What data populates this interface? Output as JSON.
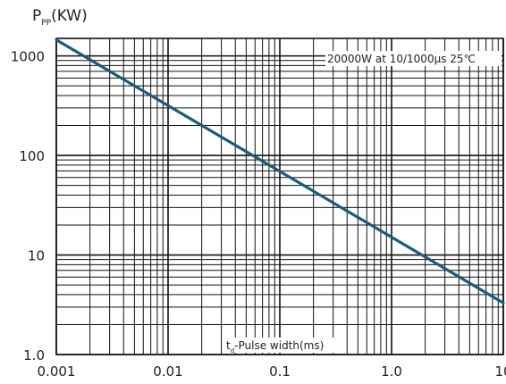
{
  "chart_data": {
    "type": "line",
    "ylabel_main": "P",
    "ylabel_sub": "PP",
    "ylabel_unit": "(KW)",
    "xlabel_main": "t",
    "xlabel_sub": "d",
    "xlabel_rest": "-Pulse width(ms)",
    "annotation": "20000W at 10/1000μs 25℃",
    "x_scale": "log",
    "y_scale": "log",
    "xlim": [
      0.001,
      10
    ],
    "ylim": [
      1.0,
      1500
    ],
    "x_tick_labels": [
      "0.001",
      "0.01",
      "0.1",
      "1.0",
      "10"
    ],
    "x_tick_values": [
      0.001,
      0.01,
      0.1,
      1,
      10
    ],
    "y_tick_labels": [
      "1.0",
      "10",
      "100",
      "1000"
    ],
    "y_tick_values": [
      1,
      10,
      100,
      1000
    ],
    "grid": true,
    "series": [
      {
        "color": "#1e5a78",
        "x": [
          0.001,
          10
        ],
        "y": [
          1450,
          3.3
        ]
      }
    ]
  }
}
